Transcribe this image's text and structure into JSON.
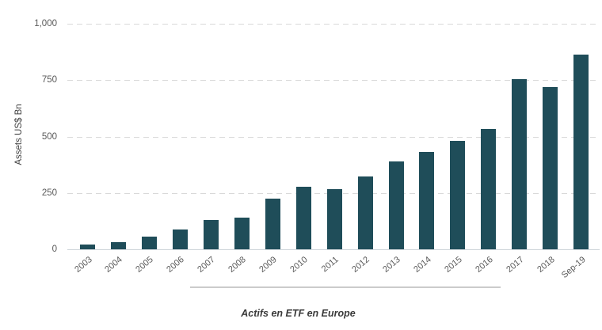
{
  "chart_data": {
    "type": "bar",
    "caption": "Actifs en ETF en Europe",
    "ylabel": "Assets US$ Bn",
    "xlabel": "",
    "categories": [
      "2003",
      "2004",
      "2005",
      "2006",
      "2007",
      "2008",
      "2009",
      "2010",
      "2011",
      "2012",
      "2013",
      "2014",
      "2015",
      "2016",
      "2017",
      "2018",
      "Sep-19"
    ],
    "values": [
      20,
      33,
      56,
      89,
      130,
      140,
      223,
      276,
      265,
      324,
      388,
      433,
      481,
      534,
      754,
      721,
      862
    ],
    "y_ticks": [
      {
        "label": "0",
        "value": 0
      },
      {
        "label": "250",
        "value": 250
      },
      {
        "label": "500",
        "value": 500
      },
      {
        "label": "750",
        "value": 750
      },
      {
        "label": "1,000",
        "value": 1000
      }
    ],
    "ylim": [
      0,
      1000
    ],
    "legend_position": "none",
    "grid": "horizontal-dashed",
    "bar_color": "#1f4d59",
    "underlined_category_range": [
      "2007",
      "2016"
    ]
  }
}
